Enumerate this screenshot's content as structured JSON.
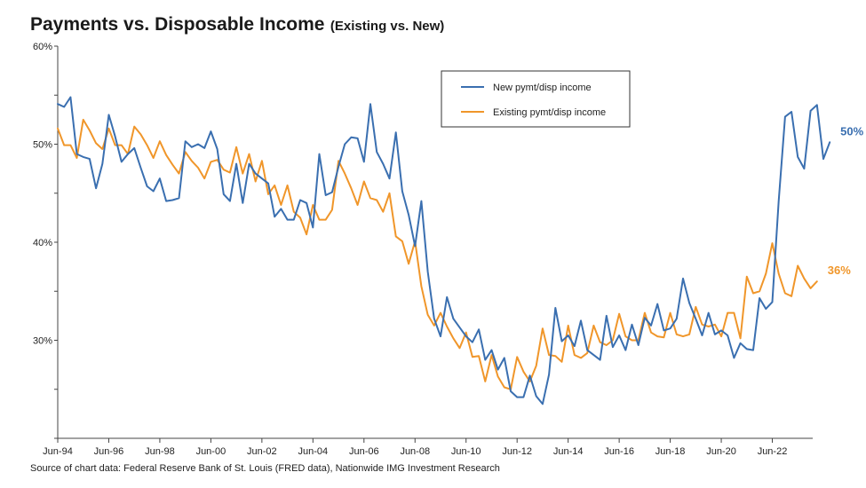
{
  "header": {
    "title": "Payments vs. Disposable Income",
    "subtitle": "(Existing vs. New)"
  },
  "footer": {
    "source": "Source of chart data: Federal Reserve Bank of St. Louis (FRED data), Nationwide IMG Investment Research"
  },
  "colors": {
    "new": "#3a6fb0",
    "existing": "#f0962a",
    "axis": "#444444"
  },
  "chart_data": {
    "type": "line",
    "title": "Payments vs. Disposable Income (Existing vs. New)",
    "xlabel": "",
    "ylabel": "",
    "x_start": 1994.417,
    "x_step": 0.25,
    "xlim": [
      1994.417,
      2024.0
    ],
    "ylim": [
      20,
      60
    ],
    "grid": false,
    "legend_position": "top-right",
    "y_ticks": [
      {
        "value": 60,
        "label": "60%"
      },
      {
        "value": 50,
        "label": "50%"
      },
      {
        "value": 40,
        "label": "40%"
      },
      {
        "value": 30,
        "label": "30%"
      }
    ],
    "y_minor_ticks": [
      20,
      25,
      35,
      45,
      55
    ],
    "x_ticks": [
      {
        "value": 1994.417,
        "label": "Jun-94"
      },
      {
        "value": 1996.417,
        "label": "Jun-96"
      },
      {
        "value": 1998.417,
        "label": "Jun-98"
      },
      {
        "value": 2000.417,
        "label": "Jun-00"
      },
      {
        "value": 2002.417,
        "label": "Jun-02"
      },
      {
        "value": 2004.417,
        "label": "Jun-04"
      },
      {
        "value": 2006.417,
        "label": "Jun-06"
      },
      {
        "value": 2008.417,
        "label": "Jun-08"
      },
      {
        "value": 2010.417,
        "label": "Jun-10"
      },
      {
        "value": 2012.417,
        "label": "Jun-12"
      },
      {
        "value": 2014.417,
        "label": "Jun-14"
      },
      {
        "value": 2016.417,
        "label": "Jun-16"
      },
      {
        "value": 2018.417,
        "label": "Jun-18"
      },
      {
        "value": 2020.417,
        "label": "Jun-20"
      },
      {
        "value": 2022.417,
        "label": "Jun-22"
      }
    ],
    "series": [
      {
        "name": "New pymt/disp income",
        "color": "#3a6fb0",
        "end_label": "50%",
        "values": [
          54.1,
          53.8,
          54.8,
          49.0,
          48.7,
          48.5,
          45.5,
          48.0,
          53.0,
          50.8,
          48.2,
          49.0,
          49.6,
          47.6,
          45.7,
          45.2,
          46.5,
          44.2,
          44.3,
          44.5,
          50.3,
          49.7,
          50.0,
          49.6,
          51.3,
          49.5,
          44.9,
          44.2,
          48.0,
          44.0,
          48.0,
          47.0,
          46.5,
          46.0,
          42.6,
          43.4,
          42.3,
          42.3,
          44.3,
          44.0,
          41.5,
          49.0,
          44.8,
          45.1,
          47.7,
          50.0,
          50.7,
          50.6,
          48.2,
          54.1,
          49.2,
          48.0,
          46.5,
          51.2,
          45.2,
          42.8,
          39.6,
          44.2,
          37.0,
          32.2,
          30.4,
          34.4,
          32.2,
          31.3,
          30.4,
          29.8,
          31.1,
          28.0,
          29.0,
          27.0,
          28.2,
          24.8,
          24.2,
          24.2,
          26.4,
          24.3,
          23.5,
          26.5,
          33.3,
          29.9,
          30.5,
          29.4,
          32.0,
          29.0,
          28.5,
          28.0,
          32.5,
          29.3,
          30.5,
          29.0,
          31.6,
          29.5,
          32.3,
          31.5,
          33.7,
          31.0,
          31.2,
          32.2,
          36.3,
          33.8,
          32.2,
          30.5,
          32.8,
          30.6,
          31.0,
          30.5,
          28.2,
          29.7,
          29.1,
          29.0,
          34.3,
          33.2,
          33.9,
          44.2,
          52.8,
          53.3,
          48.7,
          47.5,
          53.4,
          54.0,
          48.5,
          50.2
        ]
      },
      {
        "name": "Existing pymt/disp income",
        "color": "#f0962a",
        "end_label": "36%",
        "values": [
          51.6,
          49.9,
          49.9,
          48.6,
          52.5,
          51.4,
          50.1,
          49.5,
          51.6,
          49.9,
          49.9,
          49.0,
          51.8,
          51.0,
          49.9,
          48.6,
          50.3,
          48.9,
          47.9,
          47.0,
          49.2,
          48.3,
          47.6,
          46.5,
          48.2,
          48.4,
          47.4,
          47.1,
          49.7,
          47.0,
          49.0,
          46.2,
          48.3,
          44.9,
          45.8,
          43.8,
          45.8,
          43.1,
          42.5,
          40.8,
          43.8,
          42.3,
          42.3,
          43.3,
          48.3,
          47.0,
          45.5,
          43.8,
          46.2,
          44.5,
          44.3,
          43.1,
          45.0,
          40.6,
          40.1,
          37.8,
          40.1,
          35.5,
          32.6,
          31.5,
          32.8,
          31.4,
          30.2,
          29.2,
          30.8,
          28.3,
          28.4,
          25.8,
          28.5,
          26.3,
          25.2,
          25.0,
          28.3,
          26.8,
          25.8,
          27.4,
          31.2,
          28.5,
          28.4,
          27.8,
          31.5,
          28.5,
          28.2,
          28.7,
          31.5,
          29.8,
          29.5,
          30.0,
          32.7,
          30.4,
          30.0,
          30.0,
          32.8,
          30.8,
          30.4,
          30.3,
          32.8,
          30.6,
          30.4,
          30.6,
          33.4,
          31.6,
          31.4,
          31.6,
          30.4,
          32.8,
          32.8,
          30.2,
          36.5,
          34.8,
          35.0,
          36.8,
          39.9,
          36.8,
          34.8,
          34.5,
          37.6,
          36.3,
          35.3,
          36.0
        ]
      }
    ]
  }
}
